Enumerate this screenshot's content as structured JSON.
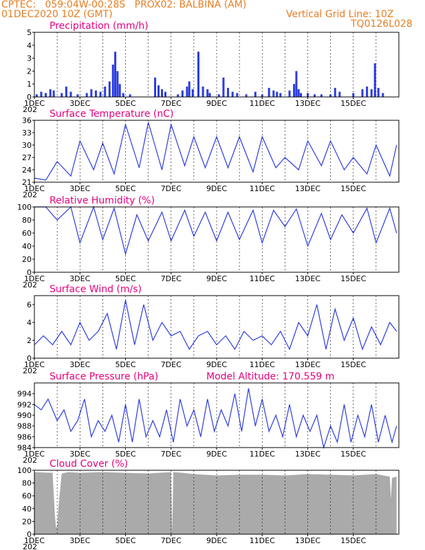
{
  "header": {
    "line1_left": "CPTEC:",
    "coords": "059:04W-00:28S",
    "station": "PROX02: BALBINA (AM)",
    "date": "01DEC2020 10Z (GMT)",
    "grid_line": "Vertical Grid Line: 10Z",
    "code": "TQ0126L028",
    "year_stub": "202"
  },
  "colors": {
    "header": "#e67e22",
    "title": "#e6007e",
    "series": "#2b3bdf",
    "cloud": "#aaaaaa"
  },
  "chart_data": [
    {
      "type": "bar",
      "title": "Precipitation (mm/h)",
      "ylim": [
        0,
        5
      ],
      "yticks": [
        0,
        1,
        2,
        3,
        4,
        5
      ],
      "xticks": [
        "1DEC",
        "3DEC",
        "5DEC",
        "7DEC",
        "9DEC",
        "11DEC",
        "13DEC",
        "15DEC"
      ],
      "x_days": [
        0.1,
        0.3,
        0.5,
        0.7,
        0.85,
        1.2,
        1.4,
        1.6,
        1.9,
        2.3,
        2.5,
        2.7,
        2.9,
        3.1,
        3.3,
        3.45,
        3.55,
        3.65,
        3.75,
        3.9,
        4.2,
        5.3,
        5.45,
        5.6,
        5.75,
        6.3,
        6.5,
        6.7,
        6.8,
        6.95,
        7.2,
        7.4,
        7.6,
        7.7,
        8.1,
        8.3,
        8.5,
        8.7,
        8.9,
        9.3,
        9.7,
        10.0,
        10.3,
        10.5,
        10.65,
        10.8,
        11.2,
        11.4,
        11.5,
        11.6,
        11.7,
        12.0,
        12.3,
        12.6,
        13.0,
        13.2,
        13.4,
        14.0,
        14.4,
        14.6,
        14.8,
        14.95,
        15.1,
        15.3
      ],
      "values": [
        0.2,
        0.4,
        0.3,
        0.6,
        0.5,
        0.3,
        0.8,
        0.4,
        0.2,
        0.3,
        0.6,
        0.5,
        0.4,
        0.8,
        1.2,
        2.5,
        3.5,
        2.0,
        1.0,
        0.3,
        0.2,
        1.5,
        0.9,
        0.6,
        0.4,
        0.2,
        0.5,
        0.8,
        1.2,
        0.6,
        3.5,
        0.8,
        0.6,
        0.3,
        0.2,
        1.5,
        0.7,
        0.4,
        0.3,
        0.2,
        0.4,
        0.2,
        0.7,
        0.5,
        0.4,
        0.3,
        0.5,
        1.0,
        2.0,
        0.6,
        0.3,
        0.3,
        0.2,
        0.2,
        0.2,
        0.7,
        0.4,
        0.3,
        0.6,
        0.8,
        0.6,
        2.6,
        0.7,
        0.3
      ]
    },
    {
      "type": "line",
      "title": "Surface Temperature (nC)",
      "ylim": [
        21,
        36
      ],
      "yticks": [
        21,
        24,
        27,
        30,
        33,
        36
      ],
      "xticks": [
        "1DEC",
        "3DEC",
        "5DEC",
        "7DEC",
        "9DEC",
        "11DEC",
        "13DEC",
        "15DEC"
      ],
      "x_days": [
        0,
        0.5,
        1.0,
        1.6,
        2.0,
        2.6,
        3.0,
        3.5,
        4.0,
        4.6,
        5.0,
        5.6,
        6.0,
        6.6,
        7.0,
        7.5,
        8.0,
        8.5,
        9.0,
        9.6,
        10.0,
        10.6,
        11.0,
        11.6,
        12.0,
        12.6,
        13.0,
        13.6,
        14.0,
        14.6,
        15.0,
        15.6,
        15.9
      ],
      "values": [
        22,
        21.5,
        26,
        22.5,
        31,
        24,
        30.5,
        23,
        35,
        24.5,
        35.5,
        24,
        35,
        25,
        32,
        24.5,
        32,
        24.5,
        32,
        23.5,
        32,
        24.5,
        27,
        24,
        31,
        25,
        31,
        24,
        27,
        23,
        30,
        22.5,
        30
      ]
    },
    {
      "type": "line",
      "title": "Relative Humidity (%)",
      "ylim": [
        0,
        100
      ],
      "yticks": [
        0,
        20,
        40,
        60,
        80,
        100
      ],
      "xticks": [
        "1DEC",
        "3DEC",
        "5DEC",
        "7DEC",
        "9DEC",
        "11DEC",
        "13DEC",
        "15DEC"
      ],
      "x_days": [
        0,
        0.5,
        1.0,
        1.6,
        2.0,
        2.6,
        3.0,
        3.5,
        4.0,
        4.5,
        5.0,
        5.6,
        6.0,
        6.6,
        7.0,
        7.5,
        8.0,
        8.5,
        9.0,
        9.6,
        10.0,
        10.5,
        11.0,
        11.5,
        12.0,
        12.6,
        13.0,
        13.5,
        14.0,
        14.6,
        15.0,
        15.6,
        15.9
      ],
      "values": [
        100,
        100,
        80,
        100,
        45,
        100,
        50,
        98,
        28,
        88,
        48,
        92,
        48,
        95,
        55,
        92,
        48,
        92,
        50,
        95,
        45,
        95,
        70,
        97,
        40,
        90,
        50,
        88,
        60,
        98,
        45,
        98,
        60
      ]
    },
    {
      "type": "line",
      "title": "Surface Wind (m/s)",
      "ylim": [
        0,
        7
      ],
      "yticks": [
        0,
        2,
        4,
        6
      ],
      "xticks": [
        "1DEC",
        "3DEC",
        "5DEC",
        "7DEC",
        "9DEC",
        "11DEC",
        "13DEC",
        "15DEC"
      ],
      "x_days": [
        0,
        0.4,
        0.8,
        1.2,
        1.6,
        2.0,
        2.4,
        2.8,
        3.2,
        3.6,
        4.0,
        4.4,
        4.8,
        5.2,
        5.6,
        6.0,
        6.4,
        6.8,
        7.2,
        7.6,
        8.0,
        8.4,
        8.8,
        9.2,
        9.6,
        10.0,
        10.4,
        10.8,
        11.2,
        11.6,
        12.0,
        12.4,
        12.8,
        13.2,
        13.6,
        14.0,
        14.4,
        14.8,
        15.2,
        15.6,
        15.9
      ],
      "values": [
        1.5,
        2.5,
        1.5,
        3.0,
        1.5,
        4.0,
        2.0,
        3.0,
        5.0,
        1.0,
        6.5,
        1.5,
        6.0,
        2.0,
        4.0,
        2.5,
        3.0,
        1.0,
        2.5,
        3.0,
        1.5,
        2.5,
        1.0,
        3.0,
        2.0,
        2.5,
        1.5,
        3.0,
        1.0,
        4.0,
        2.5,
        6.0,
        1.0,
        5.5,
        2.0,
        4.5,
        1.0,
        3.5,
        1.5,
        4.0,
        3.0
      ]
    },
    {
      "type": "line",
      "title": "Surface Pressure (hPa)",
      "annotation": "Model Altitude: 170.559 m",
      "ylim": [
        984,
        996
      ],
      "yticks": [
        984,
        986,
        988,
        990,
        992,
        994
      ],
      "xticks": [
        "1DEC",
        "3DEC",
        "5DEC",
        "7DEC",
        "9DEC",
        "11DEC",
        "13DEC",
        "15DEC"
      ],
      "x_days": [
        0,
        0.3,
        0.6,
        1.0,
        1.3,
        1.6,
        1.9,
        2.2,
        2.5,
        2.8,
        3.1,
        3.4,
        3.7,
        4.0,
        4.3,
        4.6,
        4.9,
        5.2,
        5.5,
        5.8,
        6.1,
        6.4,
        6.7,
        7.0,
        7.3,
        7.6,
        7.9,
        8.2,
        8.5,
        8.8,
        9.1,
        9.4,
        9.7,
        10.0,
        10.3,
        10.6,
        10.9,
        11.2,
        11.5,
        11.8,
        12.1,
        12.4,
        12.7,
        13.0,
        13.3,
        13.6,
        13.9,
        14.2,
        14.5,
        14.8,
        15.1,
        15.4,
        15.7,
        15.9
      ],
      "values": [
        992,
        991,
        993,
        989,
        991,
        987,
        989,
        993,
        986,
        989,
        987,
        990,
        985,
        992,
        985,
        993,
        986,
        989,
        986,
        991,
        985,
        993,
        988,
        991,
        986,
        993,
        987,
        991,
        988,
        994,
        987,
        995,
        988,
        993,
        987,
        990,
        986,
        992,
        986,
        990,
        987,
        990,
        984,
        988,
        985,
        992,
        985,
        990,
        986,
        992,
        985,
        990,
        985,
        988
      ]
    },
    {
      "type": "area",
      "title": "Cloud Cover (%)",
      "ylim": [
        0,
        100
      ],
      "yticks": [
        0,
        20,
        40,
        60,
        80,
        100
      ],
      "xticks": [
        "1DEC",
        "3DEC",
        "5DEC",
        "7DEC",
        "9DEC",
        "11DEC",
        "13DEC",
        "15DEC"
      ],
      "x_days": [
        0,
        0.8,
        0.9,
        0.95,
        1.0,
        1.05,
        1.2,
        1.5,
        2.0,
        3.0,
        4.0,
        5.0,
        6.0,
        6.05,
        6.1,
        6.5,
        7.0,
        8.0,
        9.0,
        10.0,
        11.0,
        12.0,
        13.0,
        14.0,
        15.0,
        15.6,
        15.65,
        15.7,
        15.9
      ],
      "values": [
        97,
        96,
        30,
        10,
        12,
        40,
        95,
        97,
        96,
        97,
        96,
        95,
        97,
        3,
        97,
        96,
        94,
        92,
        93,
        93,
        92,
        94,
        93,
        92,
        94,
        90,
        55,
        88,
        90
      ]
    }
  ]
}
